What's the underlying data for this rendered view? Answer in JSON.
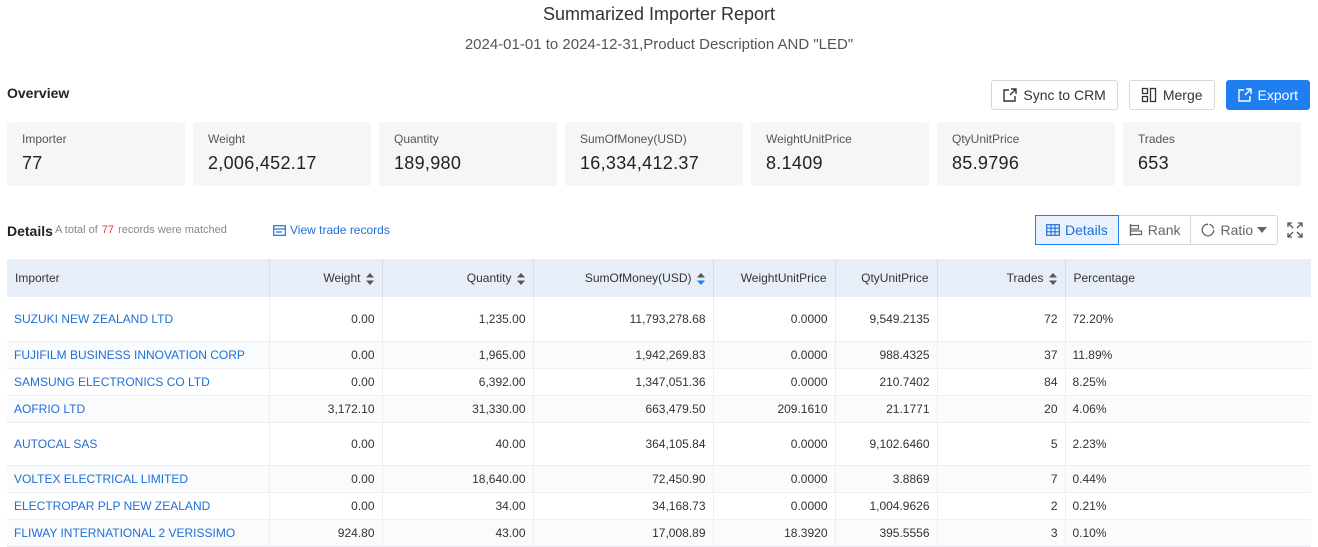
{
  "header": {
    "title": "Summarized Importer Report",
    "subtitle": "2024-01-01 to 2024-12-31,Product Description AND \"LED\""
  },
  "overview": {
    "label": "Overview",
    "actions": {
      "sync": "Sync to CRM",
      "merge": "Merge",
      "export": "Export"
    },
    "cards": [
      {
        "label": "Importer",
        "value": "77"
      },
      {
        "label": "Weight",
        "value": "2,006,452.17"
      },
      {
        "label": "Quantity",
        "value": "189,980"
      },
      {
        "label": "SumOfMoney(USD)",
        "value": "16,334,412.37"
      },
      {
        "label": "WeightUnitPrice",
        "value": "8.1409"
      },
      {
        "label": "QtyUnitPrice",
        "value": "85.9796"
      },
      {
        "label": "Trades",
        "value": "653"
      }
    ]
  },
  "details": {
    "title": "Details",
    "count_prefix": "A total of",
    "count": "77",
    "count_suffix": "records were matched",
    "view_trade_records": "View trade records",
    "views": {
      "details": "Details",
      "rank": "Rank",
      "ratio": "Ratio"
    }
  },
  "table": {
    "columns": [
      "Importer",
      "Weight",
      "Quantity",
      "SumOfMoney(USD)",
      "WeightUnitPrice",
      "QtyUnitPrice",
      "Trades",
      "Percentage"
    ],
    "rows": [
      [
        "SUZUKI NEW ZEALAND LTD",
        "0.00",
        "1,235.00",
        "11,793,278.68",
        "0.0000",
        "9,549.2135",
        "72",
        "72.20%"
      ],
      [
        "FUJIFILM BUSINESS INNOVATION CORP",
        "0.00",
        "1,965.00",
        "1,942,269.83",
        "0.0000",
        "988.4325",
        "37",
        "11.89%"
      ],
      [
        "SAMSUNG ELECTRONICS CO LTD",
        "0.00",
        "6,392.00",
        "1,347,051.36",
        "0.0000",
        "210.7402",
        "84",
        "8.25%"
      ],
      [
        "AOFRIO LTD",
        "3,172.10",
        "31,330.00",
        "663,479.50",
        "209.1610",
        "21.1771",
        "20",
        "4.06%"
      ],
      [
        "AUTOCAL SAS",
        "0.00",
        "40.00",
        "364,105.84",
        "0.0000",
        "9,102.6460",
        "5",
        "2.23%"
      ],
      [
        "VOLTEX ELECTRICAL LIMITED",
        "0.00",
        "18,640.00",
        "72,450.90",
        "0.0000",
        "3.8869",
        "7",
        "0.44%"
      ],
      [
        "ELECTROPAR PLP NEW ZEALAND",
        "0.00",
        "34.00",
        "34,168.73",
        "0.0000",
        "1,004.9626",
        "2",
        "0.21%"
      ],
      [
        "FLIWAY INTERNATIONAL 2 VERISSIMO",
        "924.80",
        "43.00",
        "17,008.89",
        "18.3920",
        "395.5556",
        "3",
        "0.10%"
      ]
    ]
  }
}
